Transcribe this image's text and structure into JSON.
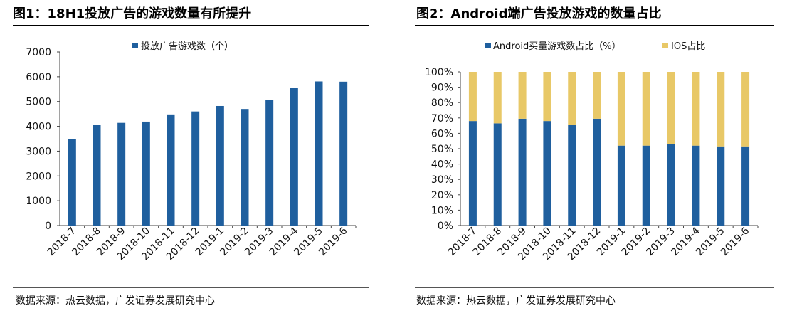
{
  "left": {
    "title": "图1：18H1投放广告的游戏数量有所提升",
    "source": "数据来源：热云数据，广发证券发展研究中心"
  },
  "right": {
    "title": "图2：Android端广告投放游戏的数量占比",
    "source": "数据来源：热云数据，广发证券发展研究中心"
  },
  "chart_data": [
    {
      "type": "bar",
      "categories": [
        "2018-7",
        "2018-8",
        "2018-9",
        "2018-10",
        "2018-11",
        "2018-12",
        "2019-1",
        "2019-2",
        "2019-3",
        "2019-4",
        "2019-5",
        "2019-6"
      ],
      "series": [
        {
          "name": "投放广告游戏数（个）",
          "values": [
            3480,
            4070,
            4140,
            4190,
            4480,
            4600,
            4820,
            4700,
            5070,
            5560,
            5810,
            5800
          ],
          "color": "#1f5f9e"
        }
      ],
      "ylim": [
        0,
        7000
      ],
      "yticks": [
        0,
        1000,
        2000,
        3000,
        4000,
        5000,
        6000,
        7000
      ],
      "legend": "top"
    },
    {
      "type": "bar",
      "stacked": true,
      "categories": [
        "2018-7",
        "2018-8",
        "2018-9",
        "2018-10",
        "2018-11",
        "2018-12",
        "2019-1",
        "2019-2",
        "2019-3",
        "2019-4",
        "2019-5",
        "2019-6"
      ],
      "series": [
        {
          "name": "Android买量游戏数占比（%）",
          "values": [
            68,
            66.5,
            69.5,
            68,
            65.5,
            69.5,
            52,
            52,
            53,
            52,
            51.5,
            51.5
          ],
          "color": "#1f5f9e"
        },
        {
          "name": "IOS占比",
          "values": [
            32,
            33.5,
            30.5,
            32,
            34.5,
            30.5,
            48,
            48,
            47,
            48,
            48.5,
            48.5
          ],
          "color": "#e8c867"
        }
      ],
      "ylim": [
        0,
        100
      ],
      "yticks": [
        "0%",
        "10%",
        "20%",
        "30%",
        "40%",
        "50%",
        "60%",
        "70%",
        "80%",
        "90%",
        "100%"
      ],
      "legend": "top"
    }
  ]
}
